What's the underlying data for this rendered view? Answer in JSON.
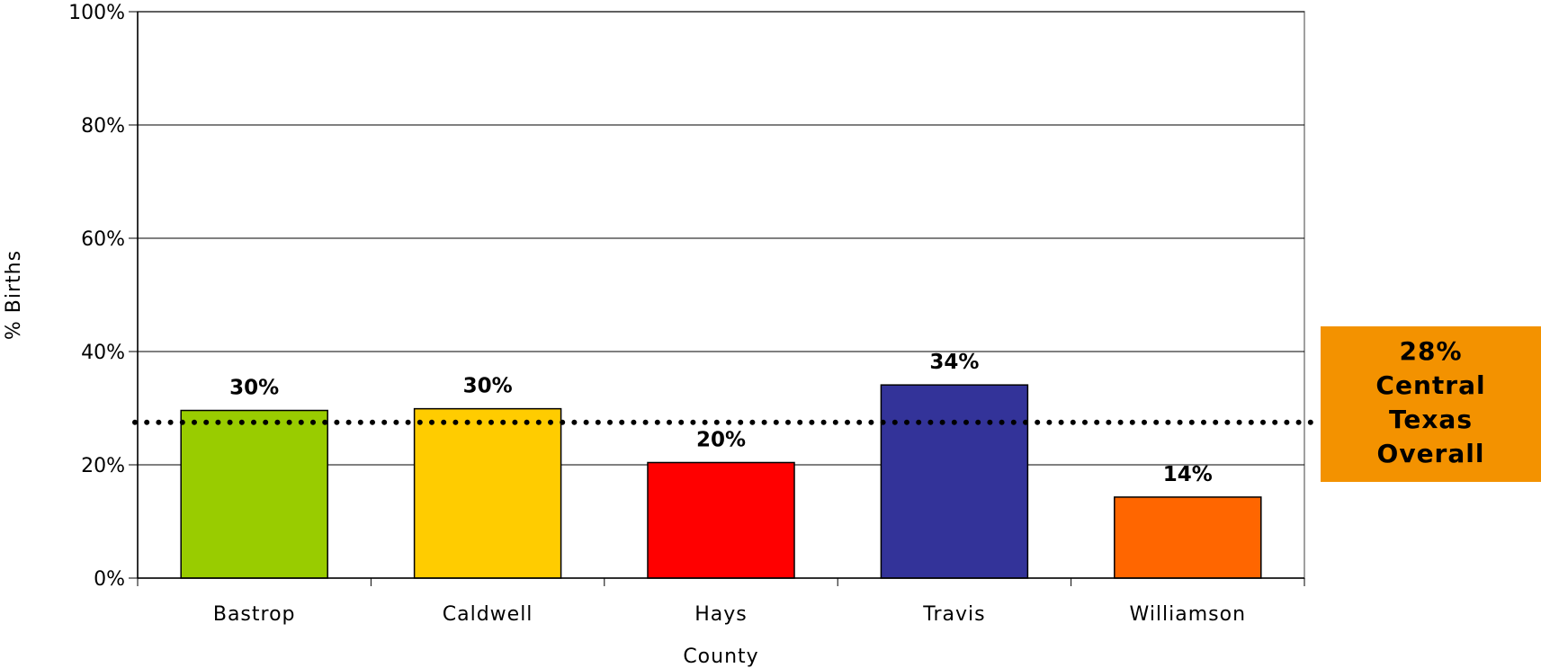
{
  "chart_data": {
    "type": "bar",
    "xlabel": "County",
    "ylabel": "% Births",
    "ylim": [
      0,
      100
    ],
    "yticks": [
      0,
      20,
      40,
      60,
      80,
      100
    ],
    "ytick_labels": [
      "0%",
      "20%",
      "40%",
      "60%",
      "80%",
      "100%"
    ],
    "categories": [
      "Bastrop",
      "Caldwell",
      "Hays",
      "Travis",
      "Williamson"
    ],
    "values": [
      29.6,
      29.9,
      20.4,
      34.1,
      14.3
    ],
    "data_labels": [
      "30%",
      "30%",
      "20%",
      "34%",
      "14%"
    ],
    "bar_colors": [
      "#99CC00",
      "#FFCC00",
      "#FF0000",
      "#333399",
      "#FF6600"
    ],
    "grid": true,
    "reference_line": {
      "value": 27.5,
      "style": "dotted",
      "color": "#000000",
      "label_lines": [
        "28%",
        "Central",
        "Texas",
        "Overall"
      ],
      "label_background": "#F39200",
      "label_position": "right"
    }
  }
}
